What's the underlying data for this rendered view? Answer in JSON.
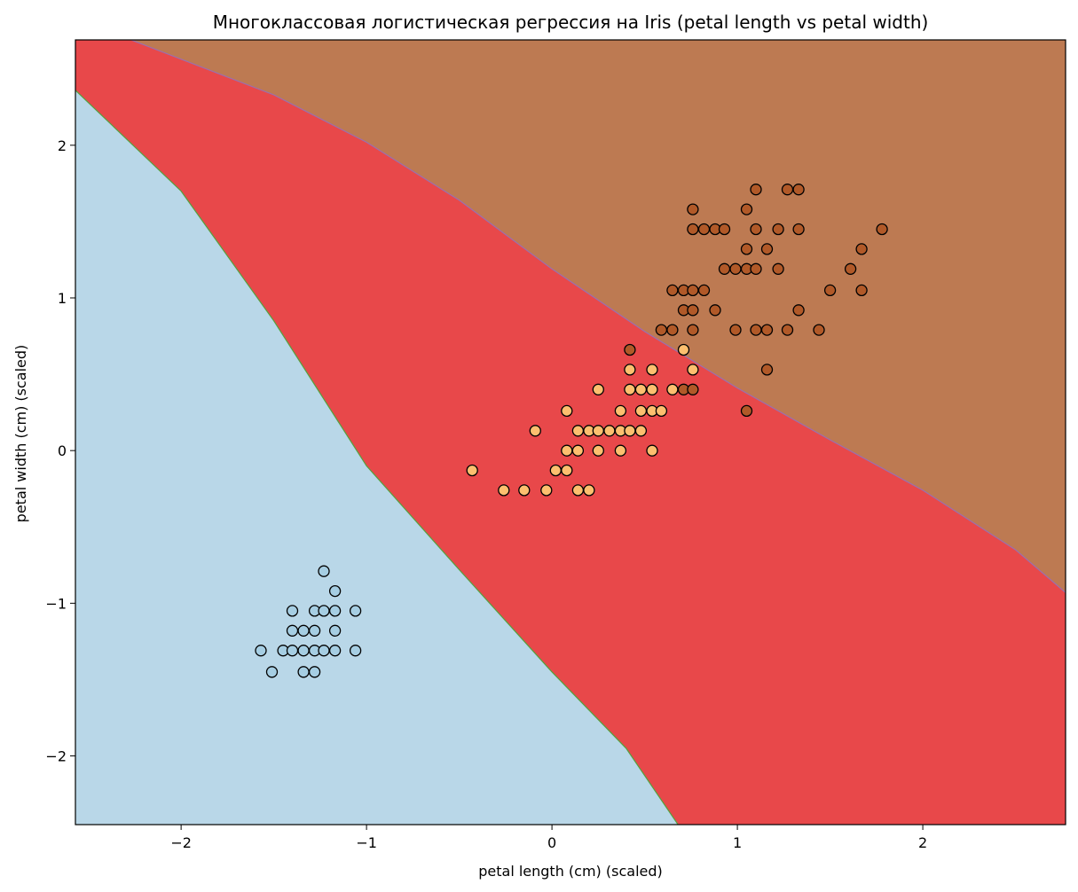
{
  "chart_data": {
    "type": "scatter",
    "title": "Многоклассовая логистическая регрессия на Iris (petal length vs petal width)",
    "xlabel": "petal length (cm) (scaled)",
    "ylabel": "petal width (cm) (scaled)",
    "xlim": [
      -2.57,
      2.77
    ],
    "ylim": [
      -2.45,
      2.69
    ],
    "x_ticks": [
      -2,
      -1,
      0,
      1,
      2
    ],
    "x_tick_labels": [
      "−2",
      "−1",
      "0",
      "1",
      "2"
    ],
    "y_ticks": [
      -2,
      -1,
      0,
      1,
      2
    ],
    "y_tick_labels": [
      "−2",
      "−1",
      "0",
      "1",
      "2"
    ],
    "grid": false,
    "legend": "none",
    "regions": [
      {
        "class": 0,
        "color": "#b9d7e8"
      },
      {
        "class": 1,
        "color": "#e8484a"
      },
      {
        "class": 2,
        "color": "#bd7a52"
      }
    ],
    "decision_boundaries": [
      {
        "between": [
          0,
          1
        ],
        "points": [
          [
            -2.57,
            2.36
          ],
          [
            -2.0,
            1.7
          ],
          [
            -1.5,
            0.85
          ],
          [
            -1.0,
            -0.1
          ],
          [
            -0.5,
            -0.78
          ],
          [
            0.0,
            -1.45
          ],
          [
            0.4,
            -1.95
          ],
          [
            0.68,
            -2.45
          ]
        ],
        "line_color": "#55a03c"
      },
      {
        "between": [
          1,
          2
        ],
        "points": [
          [
            -2.27,
            2.69
          ],
          [
            -1.5,
            2.33
          ],
          [
            -1.0,
            2.02
          ],
          [
            -0.5,
            1.64
          ],
          [
            0.0,
            1.19
          ],
          [
            0.5,
            0.78
          ],
          [
            1.0,
            0.41
          ],
          [
            1.5,
            0.07
          ],
          [
            2.0,
            -0.26
          ],
          [
            2.5,
            -0.65
          ],
          [
            2.77,
            -0.93
          ]
        ],
        "line_color": "#9a6fb0"
      }
    ],
    "series": [
      {
        "color": "#a6cee3",
        "points": [
          [
            -1.57,
            -1.31
          ],
          [
            -1.51,
            -1.45
          ],
          [
            -1.45,
            -1.31
          ],
          [
            -1.4,
            -1.31
          ],
          [
            -1.4,
            -1.18
          ],
          [
            -1.4,
            -1.05
          ],
          [
            -1.34,
            -1.45
          ],
          [
            -1.34,
            -1.31
          ],
          [
            -1.34,
            -1.18
          ],
          [
            -1.28,
            -1.45
          ],
          [
            -1.28,
            -1.31
          ],
          [
            -1.28,
            -1.18
          ],
          [
            -1.28,
            -1.05
          ],
          [
            -1.23,
            -1.31
          ],
          [
            -1.23,
            -1.05
          ],
          [
            -1.23,
            -0.79
          ],
          [
            -1.17,
            -1.31
          ],
          [
            -1.17,
            -1.18
          ],
          [
            -1.17,
            -1.05
          ],
          [
            -1.17,
            -0.92
          ],
          [
            -1.06,
            -1.31
          ],
          [
            -1.06,
            -1.05
          ]
        ]
      },
      {
        "color": "#fdbf6f",
        "points": [
          [
            -0.43,
            -0.13
          ],
          [
            -0.26,
            -0.26
          ],
          [
            -0.15,
            -0.26
          ],
          [
            -0.09,
            0.13
          ],
          [
            -0.03,
            -0.26
          ],
          [
            0.02,
            -0.13
          ],
          [
            0.08,
            -0.13
          ],
          [
            0.08,
            0.0
          ],
          [
            0.08,
            0.26
          ],
          [
            0.14,
            -0.26
          ],
          [
            0.14,
            0.0
          ],
          [
            0.14,
            0.13
          ],
          [
            0.2,
            -0.26
          ],
          [
            0.2,
            0.13
          ],
          [
            0.25,
            0.0
          ],
          [
            0.25,
            0.13
          ],
          [
            0.25,
            0.4
          ],
          [
            0.31,
            0.13
          ],
          [
            0.37,
            0.0
          ],
          [
            0.37,
            0.13
          ],
          [
            0.37,
            0.26
          ],
          [
            0.42,
            0.13
          ],
          [
            0.42,
            0.4
          ],
          [
            0.42,
            0.53
          ],
          [
            0.48,
            0.13
          ],
          [
            0.48,
            0.26
          ],
          [
            0.48,
            0.4
          ],
          [
            0.54,
            0.0
          ],
          [
            0.54,
            0.26
          ],
          [
            0.54,
            0.4
          ],
          [
            0.54,
            0.53
          ],
          [
            0.59,
            0.26
          ],
          [
            0.65,
            0.4
          ],
          [
            0.71,
            0.66
          ],
          [
            0.76,
            0.53
          ]
        ]
      },
      {
        "color": "#b15928",
        "points": [
          [
            0.42,
            0.66
          ],
          [
            0.59,
            0.79
          ],
          [
            0.65,
            0.79
          ],
          [
            0.65,
            1.05
          ],
          [
            0.71,
            0.4
          ],
          [
            0.71,
            0.92
          ],
          [
            0.71,
            1.05
          ],
          [
            0.76,
            0.4
          ],
          [
            0.76,
            0.79
          ],
          [
            0.76,
            0.92
          ],
          [
            0.76,
            1.05
          ],
          [
            0.76,
            1.45
          ],
          [
            0.76,
            1.58
          ],
          [
            0.82,
            1.05
          ],
          [
            0.82,
            1.45
          ],
          [
            0.88,
            0.92
          ],
          [
            0.88,
            1.45
          ],
          [
            0.93,
            1.19
          ],
          [
            0.93,
            1.45
          ],
          [
            0.99,
            0.79
          ],
          [
            0.99,
            1.19
          ],
          [
            1.05,
            0.26
          ],
          [
            1.05,
            1.19
          ],
          [
            1.05,
            1.32
          ],
          [
            1.05,
            1.58
          ],
          [
            1.1,
            0.79
          ],
          [
            1.1,
            1.19
          ],
          [
            1.1,
            1.45
          ],
          [
            1.1,
            1.71
          ],
          [
            1.16,
            0.53
          ],
          [
            1.16,
            0.79
          ],
          [
            1.16,
            1.32
          ],
          [
            1.22,
            1.19
          ],
          [
            1.22,
            1.45
          ],
          [
            1.27,
            0.79
          ],
          [
            1.27,
            1.71
          ],
          [
            1.33,
            0.92
          ],
          [
            1.33,
            1.45
          ],
          [
            1.33,
            1.71
          ],
          [
            1.44,
            0.79
          ],
          [
            1.5,
            1.05
          ],
          [
            1.61,
            1.19
          ],
          [
            1.67,
            1.05
          ],
          [
            1.67,
            1.32
          ],
          [
            1.78,
            1.45
          ]
        ]
      }
    ]
  }
}
